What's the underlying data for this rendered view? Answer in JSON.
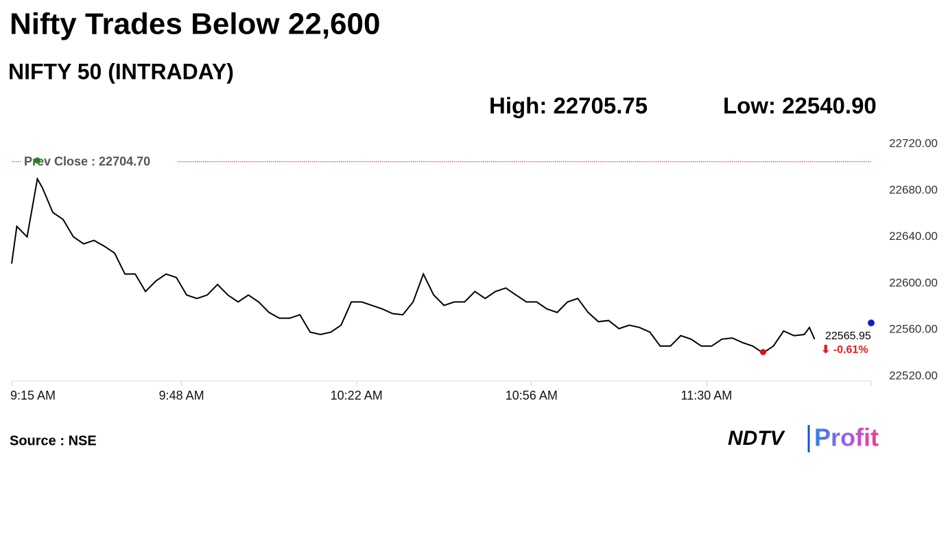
{
  "chart_data": {
    "type": "line",
    "title": "Nifty Trades Below 22,600",
    "subtitle": "NIFTY 50 (INTRADAY)",
    "high": {
      "label": "High: 22705.75",
      "value": 22705.75
    },
    "low": {
      "label": "Low: 22540.90",
      "value": 22540.9
    },
    "reference_line": {
      "label": "Prev Close : 22704.70",
      "value": 22704.7,
      "color": "#cc0000"
    },
    "last": {
      "label": "22565.95",
      "value": 22565.95
    },
    "change": {
      "label": "⬇ -0.61%",
      "value": -0.61,
      "color": "#e02020"
    },
    "x": [
      "09:15",
      "09:16",
      "09:18",
      "09:20",
      "09:21",
      "09:23",
      "09:25",
      "09:27",
      "09:29",
      "09:31",
      "09:33",
      "09:35",
      "09:37",
      "09:39",
      "09:41",
      "09:43",
      "09:45",
      "09:47",
      "09:49",
      "09:51",
      "09:53",
      "09:55",
      "09:57",
      "09:59",
      "10:01",
      "10:03",
      "10:05",
      "10:07",
      "10:09",
      "10:11",
      "10:13",
      "10:15",
      "10:17",
      "10:19",
      "10:21",
      "10:23",
      "10:25",
      "10:27",
      "10:29",
      "10:31",
      "10:33",
      "10:35",
      "10:37",
      "10:39",
      "10:41",
      "10:43",
      "10:45",
      "10:47",
      "10:49",
      "10:51",
      "10:53",
      "10:55",
      "10:57",
      "10:59",
      "11:01",
      "11:03",
      "11:05",
      "11:07",
      "11:09",
      "11:11",
      "11:13",
      "11:15",
      "11:17",
      "11:19",
      "11:21",
      "11:23",
      "11:25",
      "11:27",
      "11:29",
      "11:31",
      "11:33",
      "11:35",
      "11:37",
      "11:39",
      "11:41",
      "11:43",
      "11:45",
      "11:47",
      "11:49",
      "11:50",
      "11:51"
    ],
    "series": [
      {
        "name": "NIFTY 50",
        "color": "#000000",
        "values": [
          22617,
          22649,
          22640,
          22690,
          22682,
          22661,
          22655,
          22640,
          22634,
          22637,
          22632,
          22626,
          22608,
          22608,
          22593,
          22602,
          22608,
          22605,
          22590,
          22587,
          22590,
          22599,
          22590,
          22584,
          22590,
          22584,
          22575,
          22570,
          22570,
          22573,
          22558,
          22556,
          22558,
          22564,
          22584,
          22584,
          22581,
          22578,
          22574,
          22573,
          22584,
          22608,
          22590,
          22581,
          22584,
          22584,
          22593,
          22587,
          22593,
          22596,
          22590,
          22584,
          22584,
          22578,
          22575,
          22584,
          22587,
          22575,
          22567,
          22568,
          22561,
          22564,
          22562,
          22558,
          22546,
          22546,
          22555,
          22552,
          22546,
          22546,
          22552,
          22553,
          22549,
          22546,
          22540,
          22546,
          22559,
          22555,
          22556,
          22562,
          22552
        ]
      }
    ],
    "xlim": [
      "09:15",
      "12:02"
    ],
    "xticks": [
      {
        "value": "09:15",
        "label": "9:15 AM"
      },
      {
        "value": "09:48",
        "label": "9:48 AM"
      },
      {
        "value": "10:22",
        "label": "10:22 AM"
      },
      {
        "value": "10:56",
        "label": "10:56 AM"
      },
      {
        "value": "11:30",
        "label": "11:30 AM"
      }
    ],
    "ylim": [
      22520,
      22720
    ],
    "yticks": [
      {
        "value": 22520,
        "label": "22520.00"
      },
      {
        "value": 22560,
        "label": "22560.00"
      },
      {
        "value": 22600,
        "label": "22600.00"
      },
      {
        "value": 22640,
        "label": "22640.00"
      },
      {
        "value": 22680,
        "label": "22680.00"
      },
      {
        "value": 22720,
        "label": "22720.00"
      }
    ],
    "source": "Source : NSE",
    "logo": {
      "left": "NDTV",
      "right": "Profit"
    }
  }
}
